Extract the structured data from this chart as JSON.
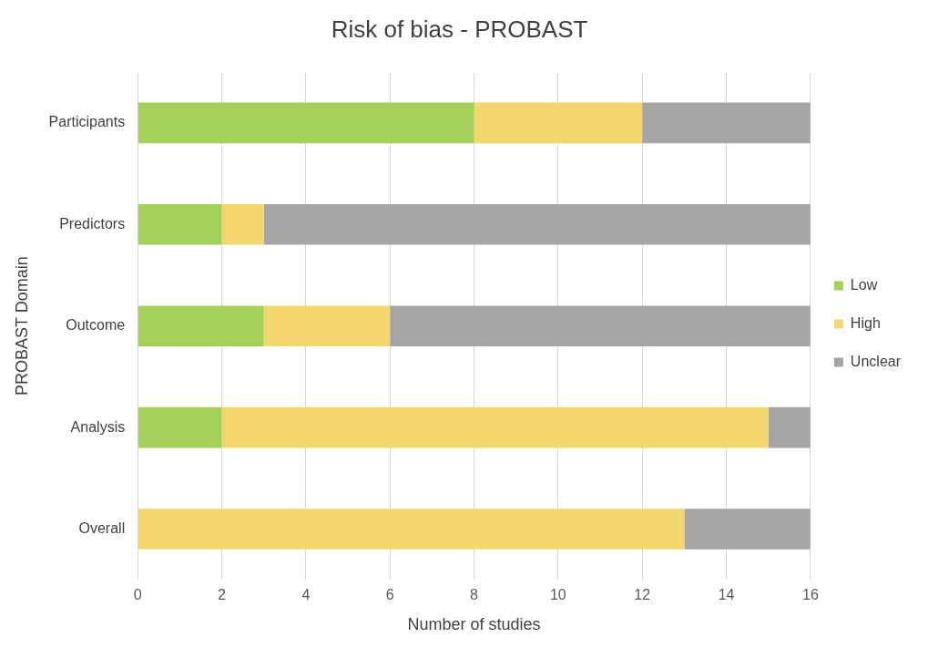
{
  "chart_data": {
    "type": "bar",
    "title": "Risk of bias - PROBAST",
    "xlabel": "Number of studies",
    "ylabel": "PROBAST Domain",
    "orientation": "horizontal",
    "stacked": true,
    "categories": [
      "Participants",
      "Predictors",
      "Outcome",
      "Analysis",
      "Overall"
    ],
    "series": [
      {
        "name": "Low",
        "color": "#a5d05a",
        "values": [
          8,
          2,
          3,
          2,
          0
        ]
      },
      {
        "name": "High",
        "color": "#f4d66e",
        "values": [
          4,
          1,
          3,
          13,
          13
        ]
      },
      {
        "name": "Unclear",
        "color": "#a5a5a5",
        "values": [
          4,
          13,
          10,
          1,
          3
        ]
      }
    ],
    "xlim": [
      0,
      16
    ],
    "xticks": [
      0,
      2,
      4,
      6,
      8,
      10,
      12,
      14,
      16
    ],
    "grid": "x",
    "legend": "right"
  }
}
